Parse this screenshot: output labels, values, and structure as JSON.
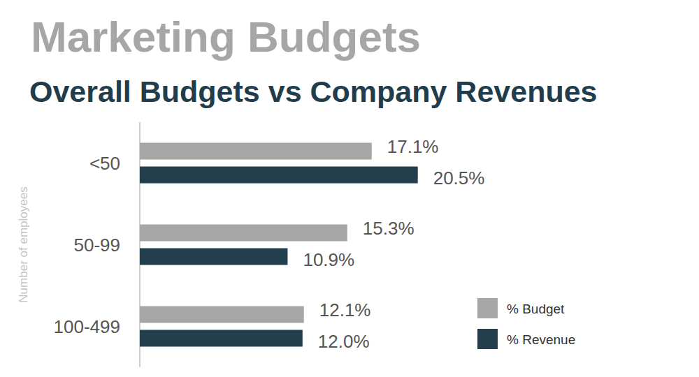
{
  "chart_data": {
    "type": "bar",
    "orientation": "horizontal",
    "title": "Marketing Budgets",
    "subtitle": "Overall Budgets vs Company Revenues",
    "y_label": "Number of employees",
    "categories": [
      "<50",
      "50-99",
      "100-499"
    ],
    "series": [
      {
        "name": "% Budget",
        "color": "#a6a6a6",
        "values": [
          17.1,
          15.3,
          12.1
        ],
        "value_labels": [
          "17.1%",
          "15.3%",
          "12.1%"
        ]
      },
      {
        "name": "% Revenue",
        "color": "#233f4d",
        "values": [
          20.5,
          10.9,
          12.0
        ],
        "value_labels": [
          "20.5%",
          "10.9%",
          "12.0%"
        ]
      }
    ],
    "xlim": [
      0,
      25
    ],
    "data_labels": true,
    "tick_labels": "y",
    "grid": false,
    "legend": "lower right"
  }
}
